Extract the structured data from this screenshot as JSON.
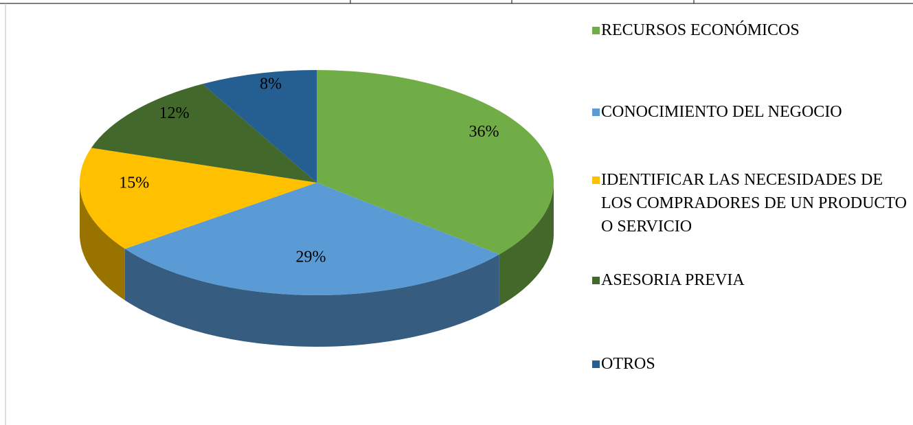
{
  "chart_data": {
    "type": "pie",
    "categories": [
      "RECURSOS ECONÓMICOS",
      "CONOCIMIENTO DEL NEGOCIO",
      "IDENTIFICAR LAS NECESIDADES DE LOS COMPRADORES DE UN PRODUCTO O SERVICIO",
      "ASESORIA PREVIA",
      "OTROS"
    ],
    "values": [
      36,
      29,
      15,
      12,
      8
    ],
    "value_labels": [
      "36%",
      "29%",
      "15%",
      "12%",
      "8%"
    ],
    "colors": [
      "#70ad47",
      "#5b9bd5",
      "#ffc000",
      "#43682b",
      "#255e91"
    ],
    "legend": "right"
  }
}
